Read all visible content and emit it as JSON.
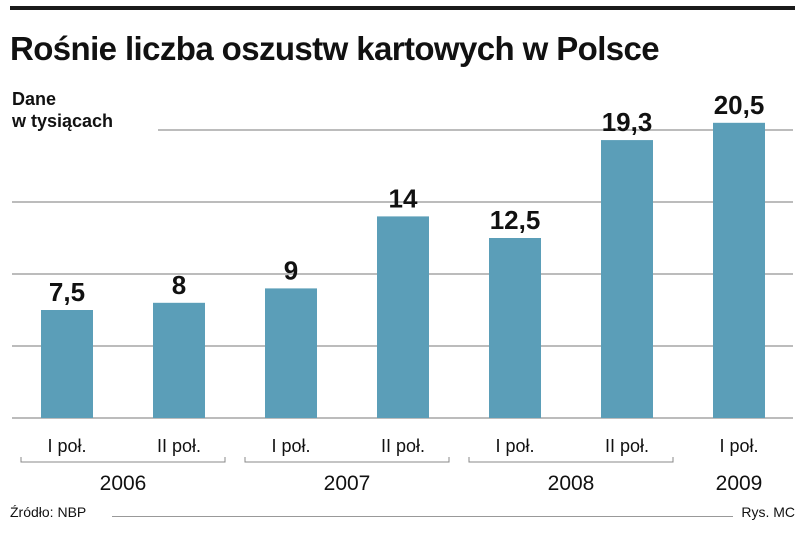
{
  "title": "Rośnie liczba oszustw kartowych w Polsce",
  "unit_label_line1": "Dane",
  "unit_label_line2": "w tysiącach",
  "source": "Źródło: NBP",
  "credit": "Rys. MC",
  "colors": {
    "bar": "#5b9eb8",
    "grid": "#7a7a7a",
    "text": "#111111"
  },
  "chart_data": {
    "type": "bar",
    "title": "Rośnie liczba oszustw kartowych w Polsce",
    "ylabel": "Dane w tysiącach",
    "categories": [
      "I poł.",
      "II poł.",
      "I poł.",
      "II poł.",
      "I poł.",
      "II poł.",
      "I poł."
    ],
    "values": [
      7.5,
      8,
      9,
      14,
      12.5,
      19.3,
      20.5
    ],
    "value_labels": [
      "7,5",
      "8",
      "9",
      "14",
      "12,5",
      "19,3",
      "20,5"
    ],
    "years": [
      {
        "label": "2006",
        "span": [
          0,
          1
        ]
      },
      {
        "label": "2007",
        "span": [
          2,
          3
        ]
      },
      {
        "label": "2008",
        "span": [
          4,
          5
        ]
      },
      {
        "label": "2009",
        "span": [
          6,
          6
        ]
      }
    ],
    "ylim": [
      0,
      20
    ],
    "grid": true,
    "gridlines": [
      5,
      10,
      15,
      20
    ],
    "legend": "none"
  }
}
